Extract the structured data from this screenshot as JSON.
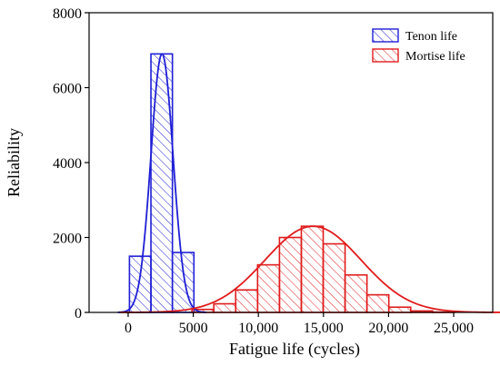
{
  "chart_data": {
    "type": "bar",
    "title": "",
    "xlabel": "Fatigue life (cycles)",
    "ylabel": "Reliability",
    "xlim": [
      -3000,
      28000
    ],
    "ylim": [
      0,
      8000
    ],
    "x_ticks": [
      0,
      5000,
      10000,
      15000,
      20000,
      25000
    ],
    "x_tick_labels": [
      "0",
      "5000",
      "10,000",
      "15,000",
      "20,000",
      "25,000"
    ],
    "y_ticks": [
      0,
      2000,
      4000,
      6000,
      8000
    ],
    "y_tick_labels": [
      "0",
      "2000",
      "4000",
      "6000",
      "8000"
    ],
    "grid": false,
    "legend_position": "top-right",
    "series": [
      {
        "name": "Tenon life",
        "color": "#1f1fd6",
        "bins": [
          {
            "x0": 100,
            "x1": 1750,
            "count": 1500
          },
          {
            "x0": 1750,
            "x1": 3400,
            "count": 6900
          },
          {
            "x0": 3400,
            "x1": 5050,
            "count": 1600
          }
        ],
        "fit_curve": {
          "mean": 2600,
          "sd": 850,
          "peak": 6900
        }
      },
      {
        "name": "Mortise life",
        "color": "#e01c1c",
        "bins": [
          {
            "x0": 4900,
            "x1": 6580,
            "count": 80
          },
          {
            "x0": 6580,
            "x1": 8260,
            "count": 230
          },
          {
            "x0": 8260,
            "x1": 9940,
            "count": 600
          },
          {
            "x0": 9940,
            "x1": 11620,
            "count": 1270
          },
          {
            "x0": 11620,
            "x1": 13300,
            "count": 2000
          },
          {
            "x0": 13300,
            "x1": 14980,
            "count": 2300
          },
          {
            "x0": 14980,
            "x1": 16660,
            "count": 1830
          },
          {
            "x0": 16660,
            "x1": 18340,
            "count": 1000
          },
          {
            "x0": 18340,
            "x1": 20020,
            "count": 470
          },
          {
            "x0": 20020,
            "x1": 21700,
            "count": 140
          },
          {
            "x0": 21700,
            "x1": 23380,
            "count": 40
          },
          {
            "x0": 23380,
            "x1": 25060,
            "count": 10
          }
        ],
        "fit_curve": {
          "mean": 14200,
          "sd": 3700,
          "peak": 2300
        }
      }
    ]
  }
}
